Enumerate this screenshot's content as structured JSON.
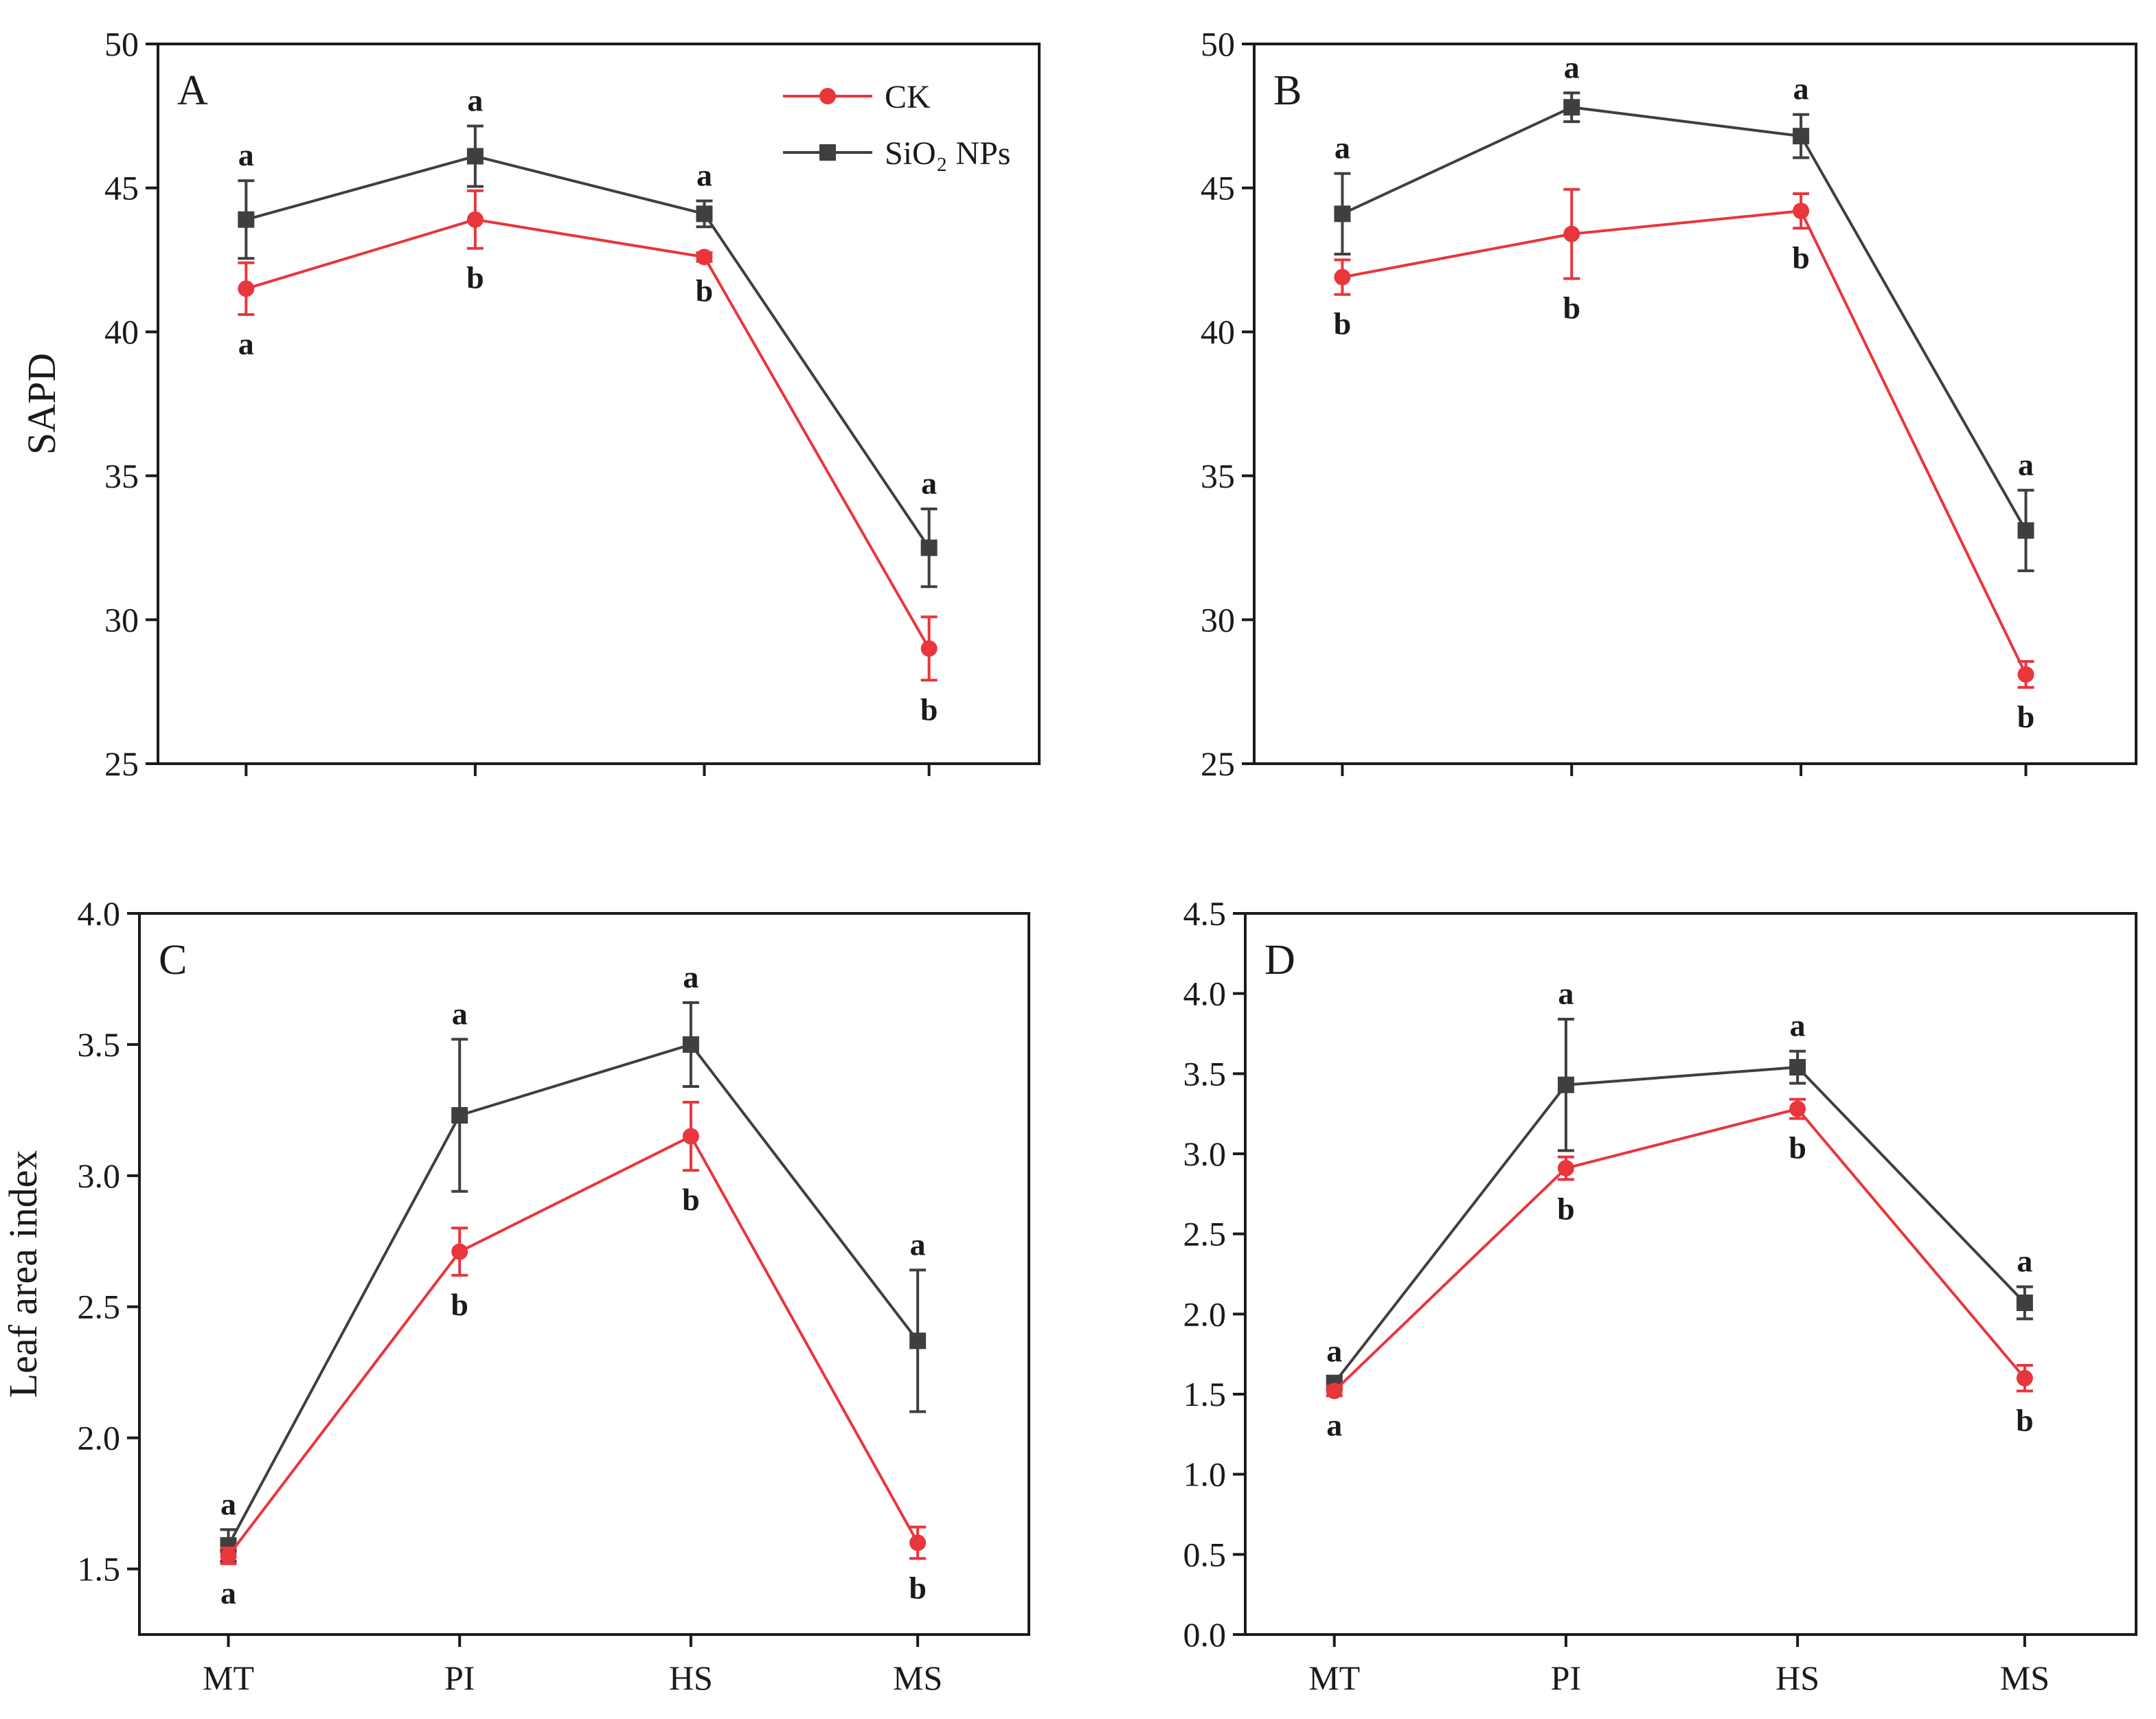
{
  "legend": {
    "ck": "CK",
    "sio2": "SiO₂ NPs"
  },
  "colors": {
    "ck": "#e8363c",
    "sio2": "#3f3f3f",
    "axis": "#1a1a1a"
  },
  "chart_data": [
    {
      "type": "line",
      "panel": "A",
      "ylabel": "SAPD",
      "xlabel": "",
      "categories": [
        "MT",
        "PI",
        "HS",
        "MS"
      ],
      "show_x_tick_labels": false,
      "ylim": [
        25,
        50
      ],
      "yticks": [
        25,
        30,
        35,
        40,
        45,
        50
      ],
      "legend": "top-right",
      "series": [
        {
          "name": "CK",
          "key": "ck",
          "values": [
            41.5,
            43.9,
            42.6,
            29.0
          ],
          "errors": [
            0.9,
            1.0,
            0.15,
            1.1
          ],
          "letters": [
            "a",
            "b",
            "b",
            "b"
          ],
          "letter_pos": "below"
        },
        {
          "name": "SiO₂ NPs",
          "key": "sio2",
          "values": [
            43.9,
            46.1,
            44.1,
            32.5
          ],
          "errors": [
            1.35,
            1.05,
            0.45,
            1.35
          ],
          "letters": [
            "a",
            "a",
            "a",
            "a"
          ],
          "letter_pos": "above"
        }
      ]
    },
    {
      "type": "line",
      "panel": "B",
      "ylabel": "",
      "xlabel": "",
      "categories": [
        "MT",
        "PI",
        "HS",
        "MS"
      ],
      "show_x_tick_labels": false,
      "ylim": [
        25,
        50
      ],
      "yticks": [
        25,
        30,
        35,
        40,
        45,
        50
      ],
      "series": [
        {
          "name": "CK",
          "key": "ck",
          "values": [
            41.9,
            43.4,
            44.2,
            28.1
          ],
          "errors": [
            0.6,
            1.55,
            0.6,
            0.45
          ],
          "letters": [
            "b",
            "b",
            "b",
            "b"
          ],
          "letter_pos": "below"
        },
        {
          "name": "SiO₂ NPs",
          "key": "sio2",
          "values": [
            44.1,
            47.8,
            46.8,
            33.1
          ],
          "errors": [
            1.4,
            0.5,
            0.75,
            1.4
          ],
          "letters": [
            "a",
            "a",
            "a",
            "a"
          ],
          "letter_pos": "above"
        }
      ]
    },
    {
      "type": "line",
      "panel": "C",
      "ylabel": "Leaf area index",
      "xlabel": "",
      "categories": [
        "MT",
        "PI",
        "HS",
        "MS"
      ],
      "show_x_tick_labels": true,
      "ylim": [
        1.25,
        4.0
      ],
      "yticks": [
        1.5,
        2.0,
        2.5,
        3.0,
        3.5,
        4.0
      ],
      "series": [
        {
          "name": "CK",
          "key": "ck",
          "values": [
            1.55,
            2.71,
            3.15,
            1.6
          ],
          "errors": [
            0.03,
            0.09,
            0.13,
            0.06
          ],
          "letters": [
            "a",
            "b",
            "b",
            "b"
          ],
          "letter_pos": "below"
        },
        {
          "name": "SiO₂ NPs",
          "key": "sio2",
          "values": [
            1.59,
            3.23,
            3.5,
            2.37
          ],
          "errors": [
            0.06,
            0.29,
            0.16,
            0.27
          ],
          "letters": [
            "a",
            "a",
            "a",
            "a"
          ],
          "letter_pos": "above"
        }
      ]
    },
    {
      "type": "line",
      "panel": "D",
      "ylabel": "",
      "xlabel": "",
      "categories": [
        "MT",
        "PI",
        "HS",
        "MS"
      ],
      "show_x_tick_labels": true,
      "ylim": [
        0.0,
        4.5
      ],
      "yticks": [
        0.0,
        0.5,
        1.0,
        1.5,
        2.0,
        2.5,
        3.0,
        3.5,
        4.0,
        4.5
      ],
      "series": [
        {
          "name": "CK",
          "key": "ck",
          "values": [
            1.52,
            2.91,
            3.28,
            1.6
          ],
          "errors": [
            0.03,
            0.07,
            0.06,
            0.08
          ],
          "letters": [
            "a",
            "b",
            "b",
            "b"
          ],
          "letter_pos": "below"
        },
        {
          "name": "SiO₂ NPs",
          "key": "sio2",
          "values": [
            1.57,
            3.43,
            3.54,
            2.07
          ],
          "errors": [
            0.04,
            0.41,
            0.1,
            0.1
          ],
          "letters": [
            "a",
            "a",
            "a",
            "a"
          ],
          "letter_pos": "above"
        }
      ]
    }
  ]
}
